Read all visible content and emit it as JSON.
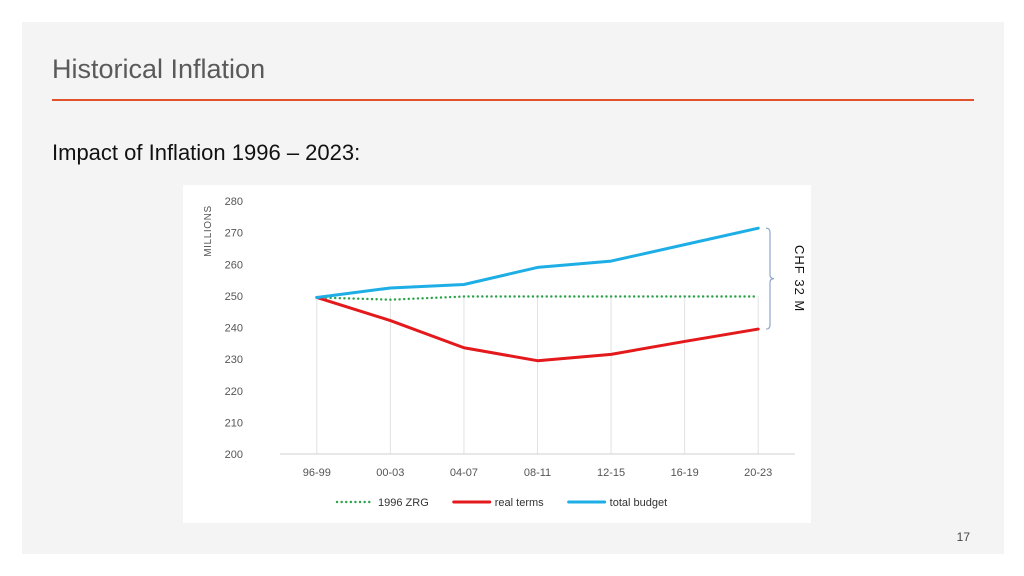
{
  "slide": {
    "title": "Historical Inflation",
    "subtitle": "Impact of Inflation 1996 – 2023:",
    "page_number": "17"
  },
  "chart_data": {
    "type": "line",
    "title": "",
    "xlabel": "",
    "ylabel": "MILLIONS",
    "ylim": [
      200,
      280
    ],
    "y_ticks": [
      200,
      210,
      220,
      230,
      240,
      250,
      260,
      270,
      280
    ],
    "categories": [
      "96-99",
      "00-03",
      "04-07",
      "08-11",
      "12-15",
      "16-19",
      "20-23"
    ],
    "grid": "vertical",
    "legend_position": "bottom",
    "series": [
      {
        "name": "1996 ZRG",
        "color": "#2ca34a",
        "style": "dotted",
        "values": [
          249.5,
          248.8,
          249.8,
          249.8,
          249.8,
          249.8,
          249.8
        ]
      },
      {
        "name": "real terms",
        "color": "#e3191c",
        "style": "solid",
        "values": [
          249.5,
          242.2,
          233.6,
          229.5,
          231.5,
          235.6,
          239.5
        ]
      },
      {
        "name": "total budget",
        "color": "#1eaee6",
        "style": "solid",
        "values": [
          249.5,
          252.5,
          253.6,
          259.0,
          261.0,
          266.2,
          271.4
        ]
      }
    ],
    "annotation": {
      "text": "CHF 32 M",
      "from_value": 239.5,
      "to_value": 271.4
    }
  }
}
